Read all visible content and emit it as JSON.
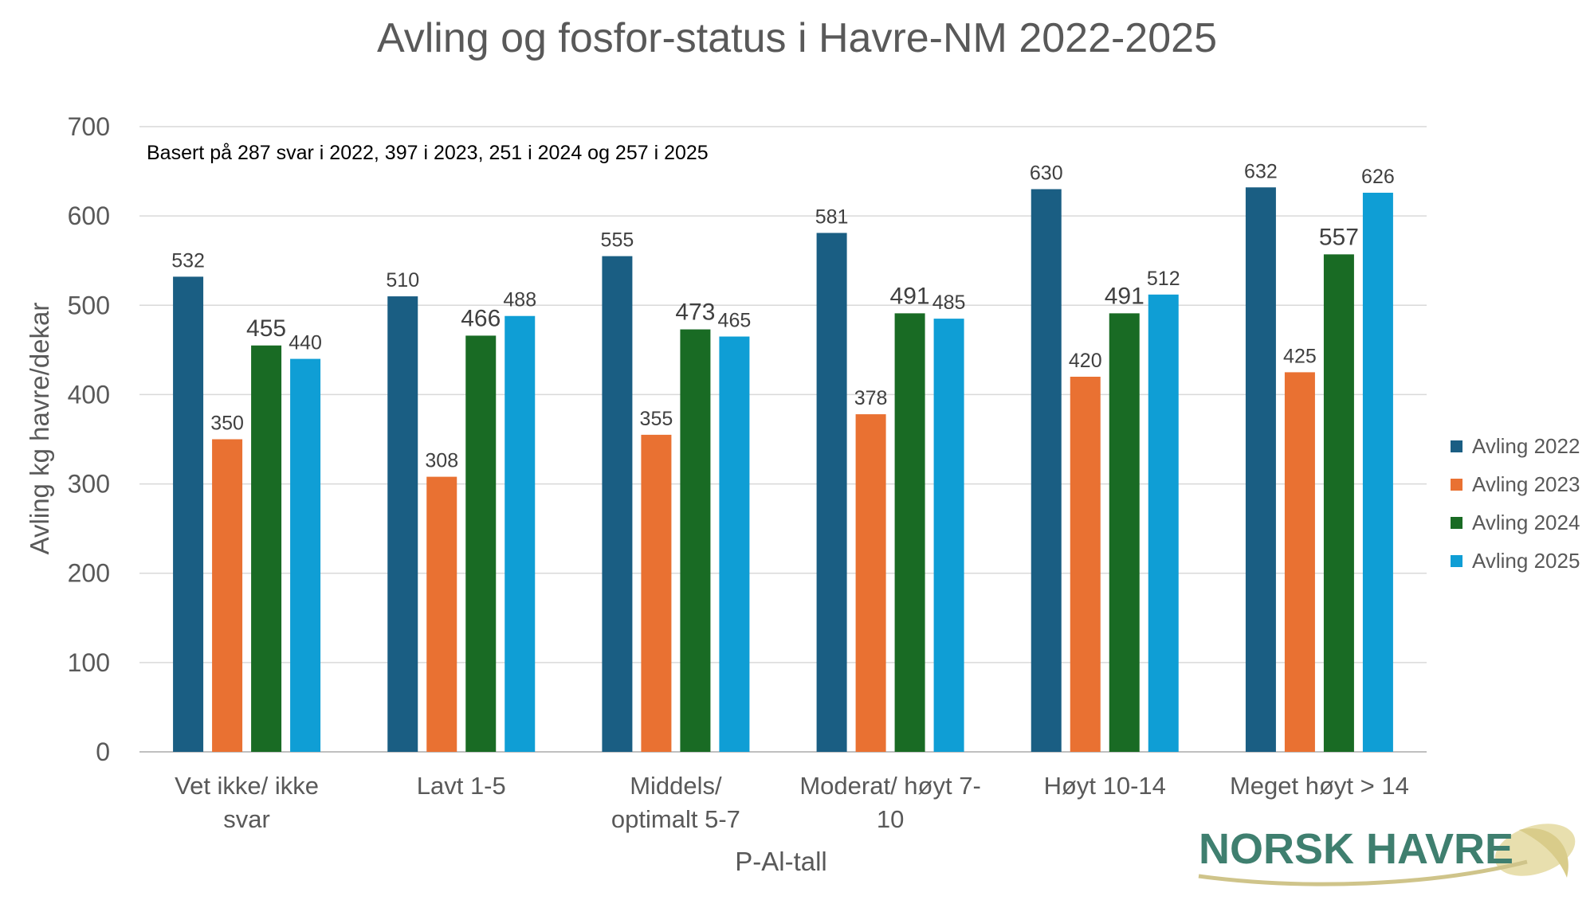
{
  "chart_data": {
    "type": "bar",
    "title": "Avling og fosfor-status i Havre-NM 2022-2025",
    "annotation": "Basert på 287 svar i 2022, 397 i 2023, 251 i 2024 og 257 i 2025",
    "xlabel": "P-Al-tall",
    "ylabel": "Avling kg havre/dekar",
    "ylim": [
      0,
      700
    ],
    "yticks": [
      0,
      100,
      200,
      300,
      400,
      500,
      600,
      700
    ],
    "grid": true,
    "legend_position": "right",
    "categories": [
      [
        "Vet ikke/ ikke",
        "svar"
      ],
      [
        "Lavt 1-5"
      ],
      [
        "Middels/",
        "optimalt 5-7"
      ],
      [
        "Moderat/ høyt 7-",
        "10"
      ],
      [
        "Høyt 10-14"
      ],
      [
        "Meget høyt > 14"
      ]
    ],
    "series": [
      {
        "name": "Avling 2022",
        "color": "#1A5E83",
        "values": [
          532,
          510,
          555,
          581,
          630,
          632
        ]
      },
      {
        "name": "Avling 2023",
        "color": "#E97132",
        "values": [
          350,
          308,
          355,
          378,
          420,
          425
        ]
      },
      {
        "name": "Avling 2024",
        "color": "#196B24",
        "values": [
          455,
          466,
          473,
          491,
          491,
          557
        ]
      },
      {
        "name": "Avling 2025",
        "color": "#0F9ED5",
        "values": [
          440,
          488,
          465,
          485,
          512,
          626
        ]
      }
    ]
  },
  "logo": {
    "text": "NORSK HAVRE",
    "color": "#3F7F6F"
  }
}
